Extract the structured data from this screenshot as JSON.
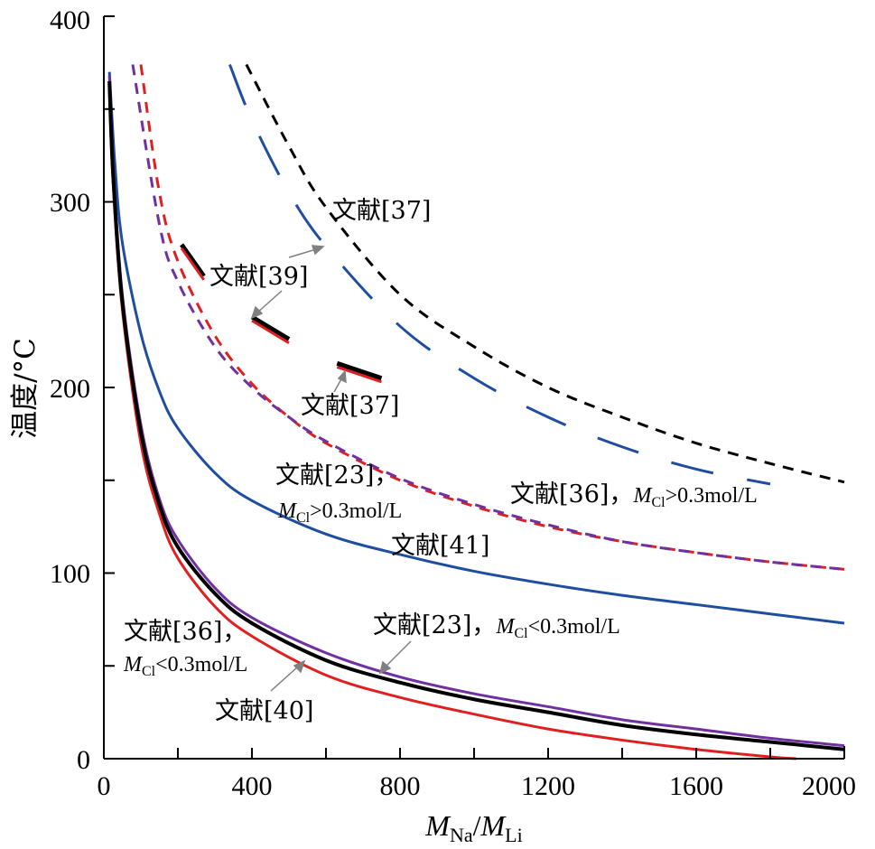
{
  "chart_data": {
    "type": "line",
    "xlabel": "M_Na/M_Li",
    "xlabel_parts": {
      "main1": "M",
      "sub1": "Na",
      "slash": "/",
      "main2": "M",
      "sub2": "Li"
    },
    "ylabel": "温度/°C",
    "xlim": [
      0,
      2000
    ],
    "ylim": [
      0,
      400
    ],
    "x_ticks": [
      "0",
      "400",
      "800",
      "1200",
      "1600",
      "2000"
    ],
    "y_ticks": [
      "0",
      "100",
      "200",
      "300",
      "400"
    ],
    "grid": false,
    "legend": "none",
    "series": [
      {
        "color": "#1f4e9f",
        "style": "long-dash",
        "points": [
          [
            340,
            374
          ],
          [
            400,
            344
          ],
          [
            500,
            305
          ],
          [
            600,
            276
          ],
          [
            800,
            233
          ],
          [
            1000,
            205
          ],
          [
            1200,
            184
          ],
          [
            1400,
            168
          ],
          [
            1600,
            156
          ],
          [
            1800,
            148
          ]
        ]
      },
      {
        "color": "#000000",
        "style": "short-dash",
        "points": [
          [
            385,
            374
          ],
          [
            500,
            330
          ],
          [
            600,
            297
          ],
          [
            800,
            250
          ],
          [
            1000,
            222
          ],
          [
            1200,
            200
          ],
          [
            1400,
            184
          ],
          [
            1600,
            170
          ],
          [
            1800,
            159
          ],
          [
            2000,
            149
          ]
        ]
      },
      {
        "color": "#e02020",
        "style": "short-dash",
        "points": [
          [
            100,
            374
          ],
          [
            150,
            305
          ],
          [
            200,
            268
          ],
          [
            300,
            228
          ],
          [
            400,
            202
          ],
          [
            500,
            184
          ],
          [
            600,
            170
          ],
          [
            800,
            150
          ],
          [
            1000,
            136
          ],
          [
            1200,
            125
          ],
          [
            1400,
            117
          ],
          [
            1600,
            111
          ],
          [
            1800,
            106
          ],
          [
            2000,
            102
          ]
        ]
      },
      {
        "color": "#7030a0",
        "style": "short-dash",
        "points": [
          [
            78,
            374
          ],
          [
            150,
            288
          ],
          [
            200,
            257
          ],
          [
            300,
            222
          ],
          [
            400,
            200
          ],
          [
            500,
            184
          ],
          [
            600,
            171
          ],
          [
            800,
            151
          ],
          [
            1000,
            137
          ],
          [
            1200,
            126
          ],
          [
            1400,
            117
          ],
          [
            1600,
            111
          ],
          [
            1800,
            106
          ],
          [
            2000,
            102
          ]
        ]
      },
      {
        "color": "#1f4e9f",
        "style": "solid",
        "points": [
          [
            15,
            370
          ],
          [
            30,
            320
          ],
          [
            50,
            278
          ],
          [
            100,
            229
          ],
          [
            150,
            198
          ],
          [
            200,
            178
          ],
          [
            300,
            154
          ],
          [
            400,
            139
          ],
          [
            600,
            121
          ],
          [
            800,
            110
          ],
          [
            1000,
            101
          ],
          [
            1200,
            94
          ],
          [
            1400,
            88
          ],
          [
            1600,
            83
          ],
          [
            1800,
            78
          ],
          [
            2000,
            73
          ]
        ]
      },
      {
        "color": "#7030a0",
        "style": "solid",
        "points": [
          [
            15,
            368
          ],
          [
            25,
            320
          ],
          [
            50,
            250
          ],
          [
            100,
            180
          ],
          [
            150,
            140
          ],
          [
            200,
            118
          ],
          [
            300,
            92
          ],
          [
            400,
            76
          ],
          [
            600,
            57
          ],
          [
            800,
            44
          ],
          [
            1000,
            35
          ],
          [
            1200,
            28
          ],
          [
            1400,
            21
          ],
          [
            1600,
            16
          ],
          [
            1800,
            11
          ],
          [
            2000,
            7
          ]
        ]
      },
      {
        "color": "#e02020",
        "style": "solid",
        "points": [
          [
            15,
            362
          ],
          [
            25,
            310
          ],
          [
            50,
            242
          ],
          [
            100,
            170
          ],
          [
            150,
            132
          ],
          [
            200,
            108
          ],
          [
            300,
            82
          ],
          [
            400,
            66
          ],
          [
            600,
            45
          ],
          [
            800,
            33
          ],
          [
            1000,
            24
          ],
          [
            1200,
            16
          ],
          [
            1400,
            10
          ],
          [
            1600,
            5
          ],
          [
            1800,
            1
          ],
          [
            1870,
            0
          ]
        ]
      },
      {
        "color": "#000000",
        "style": "solid",
        "points": [
          [
            15,
            365
          ],
          [
            25,
            315
          ],
          [
            50,
            246
          ],
          [
            100,
            176
          ],
          [
            150,
            137
          ],
          [
            200,
            114
          ],
          [
            300,
            89
          ],
          [
            400,
            73
          ],
          [
            600,
            53
          ],
          [
            800,
            41
          ],
          [
            1000,
            32
          ],
          [
            1200,
            25
          ],
          [
            1400,
            18
          ],
          [
            1600,
            13
          ],
          [
            1800,
            9
          ],
          [
            2000,
            5
          ]
        ]
      },
      {
        "color": "#000000",
        "style": "solid-bold",
        "points": [
          [
            210,
            277
          ],
          [
            270,
            260
          ]
        ]
      },
      {
        "color": "#e02020",
        "style": "solid",
        "points": [
          [
            210,
            275
          ],
          [
            270,
            258
          ]
        ]
      },
      {
        "color": "#000000",
        "style": "solid-bold",
        "points": [
          [
            400,
            238
          ],
          [
            500,
            226
          ]
        ]
      },
      {
        "color": "#e02020",
        "style": "solid",
        "points": [
          [
            400,
            236
          ],
          [
            500,
            224
          ]
        ]
      },
      {
        "color": "#000000",
        "style": "solid-bold",
        "points": [
          [
            630,
            213
          ],
          [
            750,
            205
          ]
        ]
      },
      {
        "color": "#e02020",
        "style": "solid",
        "points": [
          [
            630,
            211
          ],
          [
            750,
            203
          ]
        ]
      }
    ],
    "annotations": [
      {
        "text": "文献[37]",
        "x": 620,
        "y": 296
      },
      {
        "text": "文献[39]",
        "x": 285,
        "y": 262
      },
      {
        "text": "文献[37]",
        "x": 545,
        "y": 189
      },
      {
        "text": "文献[23]，",
        "x": 430,
        "y": 152
      },
      {
        "text": "M_Cl>0.3mol/L",
        "x": 430,
        "y": 133
      },
      {
        "text": "文献[36]，M_Cl>0.3mol/L",
        "x": 1225,
        "y": 141
      },
      {
        "text": "文献[41]",
        "x": 870,
        "y": 108
      },
      {
        "text": "文献[36]，",
        "x": 190,
        "y": 63
      },
      {
        "text": "M_Cl<0.3mol/L",
        "x": 190,
        "y": 44
      },
      {
        "text": "文献[23]，M_Cl<0.3mol/L",
        "x": 1125,
        "y": 68
      },
      {
        "text": "文献[40]",
        "x": 345,
        "y": 23
      }
    ]
  },
  "labels": {
    "a37_top": "文献[37]",
    "a39": "文献[39]",
    "a37_mid": "文献[37]",
    "a23_high_1": "文献[23]，",
    "a23_high_2a": "M",
    "a23_high_2sub": "Cl",
    "a23_high_2b": ">0.3mol/L",
    "a36_high_1": "文献[36]，",
    "a36_high_2a": "M",
    "a36_high_2sub": "Cl",
    "a36_high_2b": ">0.3mol/L",
    "a41": "文献[41]",
    "a36_low_1": "文献[36]，",
    "a36_low_2a": "M",
    "a36_low_2sub": "Cl",
    "a36_low_2b": "<0.3mol/L",
    "a23_low_1": "文献[23]，",
    "a23_low_2a": "M",
    "a23_low_2sub": "Cl",
    "a23_low_2b": "<0.3mol/L",
    "a40": "文献[40]"
  }
}
